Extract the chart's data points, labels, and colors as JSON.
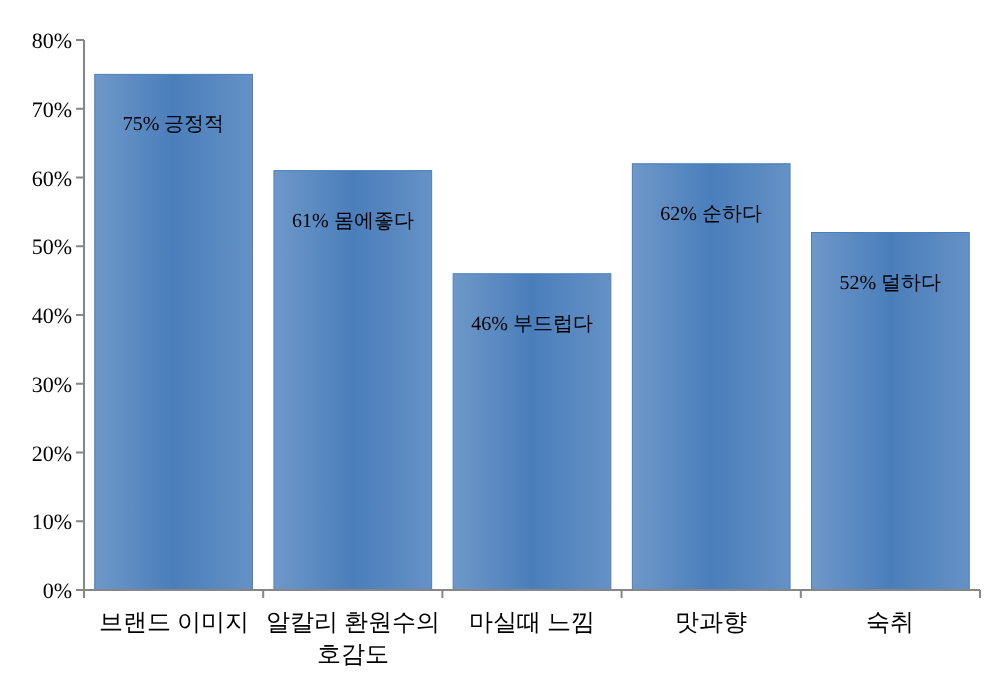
{
  "chart_data": {
    "type": "bar",
    "categories": [
      "브랜드 이미지",
      "알칼리 환원수의 호감도",
      "마실때 느낌",
      "맛과향",
      "숙취"
    ],
    "values": [
      75,
      61,
      46,
      62,
      52
    ],
    "value_labels": [
      "75% 긍정적",
      "61% 몸에좋다",
      "46% 부드럽다",
      "62% 순하다",
      "52% 덜하다"
    ],
    "color": "#4a7ebb",
    "ylim": [
      0,
      80
    ],
    "yticks": [
      {
        "value": 0,
        "label": "0%"
      },
      {
        "value": 10,
        "label": "10%"
      },
      {
        "value": 20,
        "label": "20%"
      },
      {
        "value": 30,
        "label": "30%"
      },
      {
        "value": 40,
        "label": "40%"
      },
      {
        "value": 50,
        "label": "50%"
      },
      {
        "value": 60,
        "label": "60%"
      },
      {
        "value": 70,
        "label": "70%"
      },
      {
        "value": 80,
        "label": "80%"
      }
    ],
    "grid": false
  }
}
